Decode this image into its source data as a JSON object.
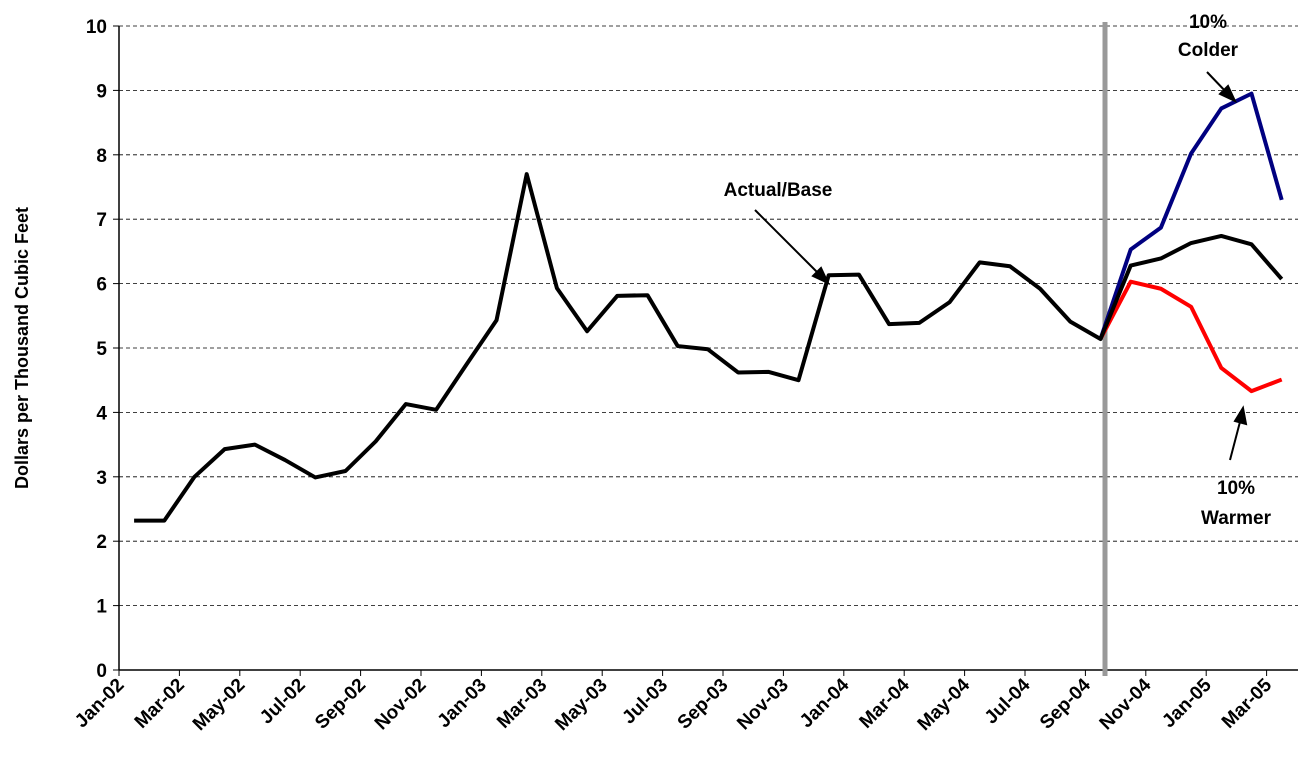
{
  "chart_data": {
    "type": "line",
    "y_label": "Dollars per Thousand Cubic Feet",
    "categories": [
      "Jan-02",
      null,
      "Mar-02",
      null,
      "May-02",
      null,
      "Jul-02",
      null,
      "Sep-02",
      null,
      "Nov-02",
      null,
      "Jan-03",
      null,
      "Mar-03",
      null,
      "May-03",
      null,
      "Jul-03",
      null,
      "Sep-03",
      null,
      "Nov-03",
      null,
      "Jan-04",
      null,
      "Mar-04",
      null,
      "May-04",
      null,
      "Jul-04",
      null,
      "Sep-04",
      null,
      "Nov-04",
      null,
      "Jan-05",
      null,
      "Mar-05"
    ],
    "series": [
      {
        "name": "10% Colder",
        "color": "#000080",
        "values": [
          null,
          null,
          null,
          null,
          null,
          null,
          null,
          null,
          null,
          null,
          null,
          null,
          null,
          null,
          null,
          null,
          null,
          null,
          null,
          null,
          null,
          null,
          null,
          null,
          null,
          null,
          null,
          null,
          null,
          null,
          null,
          null,
          5.14,
          6.53,
          6.87,
          8.02,
          8.72,
          8.95,
          7.3
        ]
      },
      {
        "name": "10% Warmer",
        "color": "#ff0000",
        "values": [
          null,
          null,
          null,
          null,
          null,
          null,
          null,
          null,
          null,
          null,
          null,
          null,
          null,
          null,
          null,
          null,
          null,
          null,
          null,
          null,
          null,
          null,
          null,
          null,
          null,
          null,
          null,
          null,
          null,
          null,
          null,
          null,
          5.14,
          6.03,
          5.92,
          5.64,
          4.69,
          4.33,
          4.51
        ]
      },
      {
        "name": "Actual/Base",
        "color": "#000000",
        "values": [
          2.32,
          2.32,
          3.0,
          3.43,
          3.5,
          3.26,
          2.99,
          3.09,
          3.55,
          4.13,
          4.04,
          4.74,
          5.43,
          7.7,
          5.93,
          5.26,
          5.81,
          5.82,
          5.03,
          4.98,
          4.62,
          4.63,
          4.5,
          6.13,
          6.14,
          5.37,
          5.39,
          5.71,
          6.33,
          6.27,
          5.92,
          5.41,
          5.14,
          6.28,
          6.39,
          6.63,
          6.74,
          6.61,
          6.07
        ]
      }
    ],
    "annotations": [
      [
        "Actual/Base"
      ],
      [
        "10%",
        "Colder"
      ],
      [
        "10%",
        "Warmer"
      ]
    ],
    "ylim": [
      0,
      10
    ],
    "yticks": [
      0,
      1,
      2,
      3,
      4,
      5,
      6,
      7,
      8,
      9,
      10
    ],
    "grid": true
  }
}
